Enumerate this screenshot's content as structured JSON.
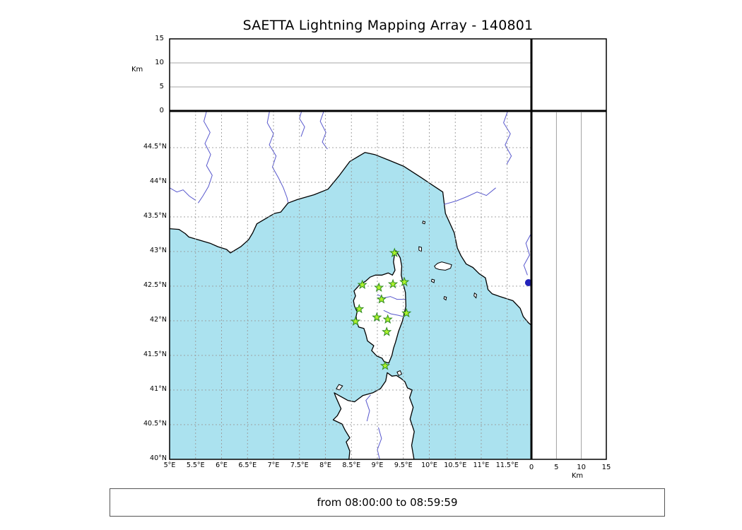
{
  "title": "SAETTA Lightning Mapping Array - 140801",
  "caption": "from 08:00:00 to 08:59:59",
  "axes": {
    "km_label": "Km",
    "alt_ticks": [
      "0",
      "5",
      "10",
      "15"
    ],
    "lon_ticks": [
      "5°E",
      "5.5°E",
      "6°E",
      "6.5°E",
      "7°E",
      "7.5°E",
      "8°E",
      "8.5°E",
      "9°E",
      "9.5°E",
      "10°E",
      "10.5°E",
      "11°E",
      "11.5°E"
    ],
    "lat_ticks": [
      "44.5°N",
      "44°N",
      "43.5°N",
      "43°N",
      "42.5°N",
      "42°N",
      "41.5°N",
      "41°N",
      "40.5°N",
      "40°N"
    ]
  },
  "colors": {
    "sea": "#abe2ef",
    "land": "#ffffff",
    "coast": "#000000",
    "river": "#4646c8",
    "grid": "#9a9a9a",
    "panel_grid": "#8a8a8a",
    "star_fill": "#aef22e",
    "star_edge": "#2d8a1e",
    "lake": "#2222bb",
    "frame": "#000000"
  },
  "chart_data": {
    "type": "scatter",
    "title": "SAETTA Lightning Mapping Array - 140801",
    "time_window": "from 08:00:00 to 08:59:59",
    "map": {
      "lon_range_deg_e": [
        5,
        11.97
      ],
      "lat_range_deg_n": [
        40,
        45.03
      ],
      "grid_step_deg": 0.5,
      "grid": "dashed"
    },
    "altitude_panels": {
      "unit": "Km",
      "range_km": [
        0,
        15
      ],
      "ticks_km": [
        0,
        5,
        10,
        15
      ],
      "gridlines_km": [
        5,
        10
      ]
    },
    "stations_lonlat": [
      [
        9.33,
        42.98
      ],
      [
        8.71,
        42.52
      ],
      [
        9.03,
        42.48
      ],
      [
        9.3,
        42.53
      ],
      [
        9.52,
        42.56
      ],
      [
        9.08,
        42.31
      ],
      [
        8.65,
        42.17
      ],
      [
        8.99,
        42.05
      ],
      [
        8.58,
        41.99
      ],
      [
        9.2,
        42.02
      ],
      [
        9.56,
        42.11
      ],
      [
        9.18,
        41.84
      ],
      [
        9.15,
        41.35
      ]
    ],
    "lightning_sources": [],
    "lake_marker_lonlat": [
      11.91,
      42.55
    ]
  },
  "basemap": {
    "mainland": [
      [
        5.0,
        43.33
      ],
      [
        5.18,
        43.32
      ],
      [
        5.3,
        43.26
      ],
      [
        5.37,
        43.21
      ],
      [
        5.55,
        43.17
      ],
      [
        5.78,
        43.12
      ],
      [
        5.93,
        43.07
      ],
      [
        6.1,
        43.03
      ],
      [
        6.17,
        42.98
      ],
      [
        6.37,
        43.07
      ],
      [
        6.52,
        43.17
      ],
      [
        6.6,
        43.27
      ],
      [
        6.68,
        43.4
      ],
      [
        6.86,
        43.48
      ],
      [
        7.02,
        43.55
      ],
      [
        7.14,
        43.57
      ],
      [
        7.28,
        43.7
      ],
      [
        7.46,
        43.75
      ],
      [
        7.78,
        43.82
      ],
      [
        8.05,
        43.9
      ],
      [
        8.26,
        44.09
      ],
      [
        8.47,
        44.3
      ],
      [
        8.76,
        44.43
      ],
      [
        8.95,
        44.4
      ],
      [
        9.22,
        44.32
      ],
      [
        9.51,
        44.23
      ],
      [
        9.84,
        44.07
      ],
      [
        10.06,
        43.96
      ],
      [
        10.26,
        43.86
      ],
      [
        10.31,
        43.55
      ],
      [
        10.48,
        43.27
      ],
      [
        10.54,
        43.05
      ],
      [
        10.61,
        42.94
      ],
      [
        10.71,
        42.82
      ],
      [
        10.84,
        42.77
      ],
      [
        10.96,
        42.68
      ],
      [
        11.08,
        42.62
      ],
      [
        11.13,
        42.45
      ],
      [
        11.21,
        42.39
      ],
      [
        11.36,
        42.35
      ],
      [
        11.61,
        42.29
      ],
      [
        11.75,
        42.18
      ],
      [
        11.81,
        42.06
      ],
      [
        11.91,
        41.97
      ],
      [
        11.99,
        41.92
      ],
      [
        11.99,
        45.05
      ],
      [
        4.98,
        45.05
      ]
    ],
    "corsica": [
      [
        9.36,
        43.01
      ],
      [
        9.44,
        42.91
      ],
      [
        9.47,
        42.79
      ],
      [
        9.46,
        42.66
      ],
      [
        9.49,
        42.56
      ],
      [
        9.54,
        42.41
      ],
      [
        9.55,
        42.21
      ],
      [
        9.48,
        41.99
      ],
      [
        9.41,
        41.85
      ],
      [
        9.35,
        41.69
      ],
      [
        9.31,
        41.6
      ],
      [
        9.28,
        41.5
      ],
      [
        9.22,
        41.39
      ],
      [
        9.13,
        41.41
      ],
      [
        9.09,
        41.46
      ],
      [
        8.99,
        41.49
      ],
      [
        8.89,
        41.57
      ],
      [
        8.93,
        41.64
      ],
      [
        8.81,
        41.71
      ],
      [
        8.78,
        41.8
      ],
      [
        8.74,
        41.89
      ],
      [
        8.64,
        41.91
      ],
      [
        8.61,
        41.98
      ],
      [
        8.59,
        42.06
      ],
      [
        8.61,
        42.13
      ],
      [
        8.56,
        42.21
      ],
      [
        8.54,
        42.29
      ],
      [
        8.58,
        42.36
      ],
      [
        8.55,
        42.43
      ],
      [
        8.66,
        42.52
      ],
      [
        8.77,
        42.57
      ],
      [
        8.86,
        42.63
      ],
      [
        8.96,
        42.66
      ],
      [
        9.09,
        42.66
      ],
      [
        9.21,
        42.69
      ],
      [
        9.29,
        42.66
      ],
      [
        9.34,
        42.73
      ],
      [
        9.31,
        42.85
      ],
      [
        9.33,
        42.96
      ]
    ],
    "sardinia": [
      [
        8.45,
        39.98
      ],
      [
        8.47,
        40.12
      ],
      [
        8.4,
        40.25
      ],
      [
        8.47,
        40.31
      ],
      [
        8.38,
        40.42
      ],
      [
        8.32,
        40.51
      ],
      [
        8.15,
        40.57
      ],
      [
        8.23,
        40.63
      ],
      [
        8.3,
        40.73
      ],
      [
        8.2,
        40.9
      ],
      [
        8.17,
        40.96
      ],
      [
        8.31,
        40.9
      ],
      [
        8.43,
        40.85
      ],
      [
        8.56,
        40.83
      ],
      [
        8.72,
        40.92
      ],
      [
        8.91,
        40.96
      ],
      [
        9.06,
        41.02
      ],
      [
        9.16,
        41.13
      ],
      [
        9.19,
        41.25
      ],
      [
        9.28,
        41.2
      ],
      [
        9.37,
        41.21
      ],
      [
        9.45,
        41.17
      ],
      [
        9.53,
        41.12
      ],
      [
        9.58,
        41.03
      ],
      [
        9.67,
        41.0
      ],
      [
        9.62,
        40.89
      ],
      [
        9.69,
        40.75
      ],
      [
        9.63,
        40.58
      ],
      [
        9.71,
        40.4
      ],
      [
        9.66,
        40.2
      ],
      [
        9.71,
        39.98
      ]
    ],
    "islands": [
      [
        [
          10.1,
          42.79
        ],
        [
          10.16,
          42.83
        ],
        [
          10.24,
          42.85
        ],
        [
          10.34,
          42.83
        ],
        [
          10.43,
          42.81
        ],
        [
          10.41,
          42.76
        ],
        [
          10.31,
          42.73
        ],
        [
          10.19,
          42.74
        ],
        [
          10.12,
          42.76
        ]
      ],
      [
        [
          9.8,
          43.07
        ],
        [
          9.85,
          43.06
        ],
        [
          9.85,
          43.0
        ],
        [
          9.8,
          43.02
        ]
      ],
      [
        [
          9.88,
          43.44
        ],
        [
          9.92,
          43.43
        ],
        [
          9.91,
          43.4
        ],
        [
          9.87,
          43.41
        ]
      ],
      [
        [
          10.05,
          42.6
        ],
        [
          10.1,
          42.59
        ],
        [
          10.09,
          42.55
        ],
        [
          10.04,
          42.57
        ]
      ],
      [
        [
          10.29,
          42.35
        ],
        [
          10.33,
          42.34
        ],
        [
          10.32,
          42.3
        ],
        [
          10.28,
          42.32
        ]
      ],
      [
        [
          10.87,
          42.4
        ],
        [
          10.91,
          42.38
        ],
        [
          10.9,
          42.33
        ],
        [
          10.86,
          42.36
        ]
      ],
      [
        [
          8.21,
          41.02
        ],
        [
          8.26,
          41.08
        ],
        [
          8.33,
          41.06
        ],
        [
          8.27,
          41.0
        ]
      ],
      [
        [
          9.38,
          41.26
        ],
        [
          9.44,
          41.28
        ],
        [
          9.47,
          41.23
        ],
        [
          9.41,
          41.21
        ]
      ]
    ],
    "rivers": [
      [
        [
          5.72,
          45.05
        ],
        [
          5.66,
          44.88
        ],
        [
          5.78,
          44.72
        ],
        [
          5.68,
          44.56
        ],
        [
          5.79,
          44.4
        ],
        [
          5.71,
          44.24
        ],
        [
          5.82,
          44.1
        ],
        [
          5.75,
          43.94
        ],
        [
          5.64,
          43.8
        ],
        [
          5.55,
          43.7
        ]
      ],
      [
        [
          5.0,
          43.92
        ],
        [
          5.14,
          43.86
        ],
        [
          5.26,
          43.89
        ],
        [
          5.38,
          43.8
        ],
        [
          5.5,
          43.74
        ]
      ],
      [
        [
          6.93,
          45.05
        ],
        [
          6.88,
          44.86
        ],
        [
          7.0,
          44.7
        ],
        [
          6.92,
          44.54
        ],
        [
          7.05,
          44.38
        ],
        [
          6.98,
          44.22
        ],
        [
          7.1,
          44.06
        ],
        [
          7.19,
          43.92
        ],
        [
          7.26,
          43.78
        ],
        [
          7.28,
          43.71
        ]
      ],
      [
        [
          7.98,
          45.05
        ],
        [
          7.9,
          44.88
        ],
        [
          8.01,
          44.72
        ],
        [
          7.94,
          44.58
        ],
        [
          8.04,
          44.48
        ]
      ],
      [
        [
          7.55,
          45.05
        ],
        [
          7.5,
          44.92
        ],
        [
          7.6,
          44.8
        ],
        [
          7.53,
          44.66
        ]
      ],
      [
        [
          11.52,
          45.05
        ],
        [
          11.43,
          44.86
        ],
        [
          11.56,
          44.7
        ],
        [
          11.46,
          44.54
        ],
        [
          11.58,
          44.38
        ],
        [
          11.49,
          44.26
        ]
      ],
      [
        [
          11.28,
          43.92
        ],
        [
          11.1,
          43.81
        ],
        [
          10.92,
          43.86
        ],
        [
          10.72,
          43.79
        ],
        [
          10.52,
          43.73
        ],
        [
          10.28,
          43.68
        ]
      ],
      [
        [
          11.99,
          43.3
        ],
        [
          11.86,
          43.12
        ],
        [
          11.93,
          42.95
        ],
        [
          11.82,
          42.8
        ],
        [
          11.89,
          42.66
        ]
      ],
      [
        [
          9.0,
          42.38
        ],
        [
          9.12,
          42.33
        ],
        [
          9.25,
          42.35
        ],
        [
          9.38,
          42.31
        ],
        [
          9.54,
          42.31
        ]
      ],
      [
        [
          9.12,
          42.15
        ],
        [
          9.26,
          42.1
        ],
        [
          9.4,
          42.08
        ],
        [
          9.51,
          42.06
        ]
      ],
      [
        [
          8.8,
          40.55
        ],
        [
          8.85,
          40.7
        ],
        [
          8.78,
          40.85
        ],
        [
          8.87,
          40.93
        ]
      ],
      [
        [
          9.05,
          39.98
        ],
        [
          9.0,
          40.14
        ],
        [
          9.08,
          40.3
        ],
        [
          9.02,
          40.46
        ]
      ]
    ]
  }
}
